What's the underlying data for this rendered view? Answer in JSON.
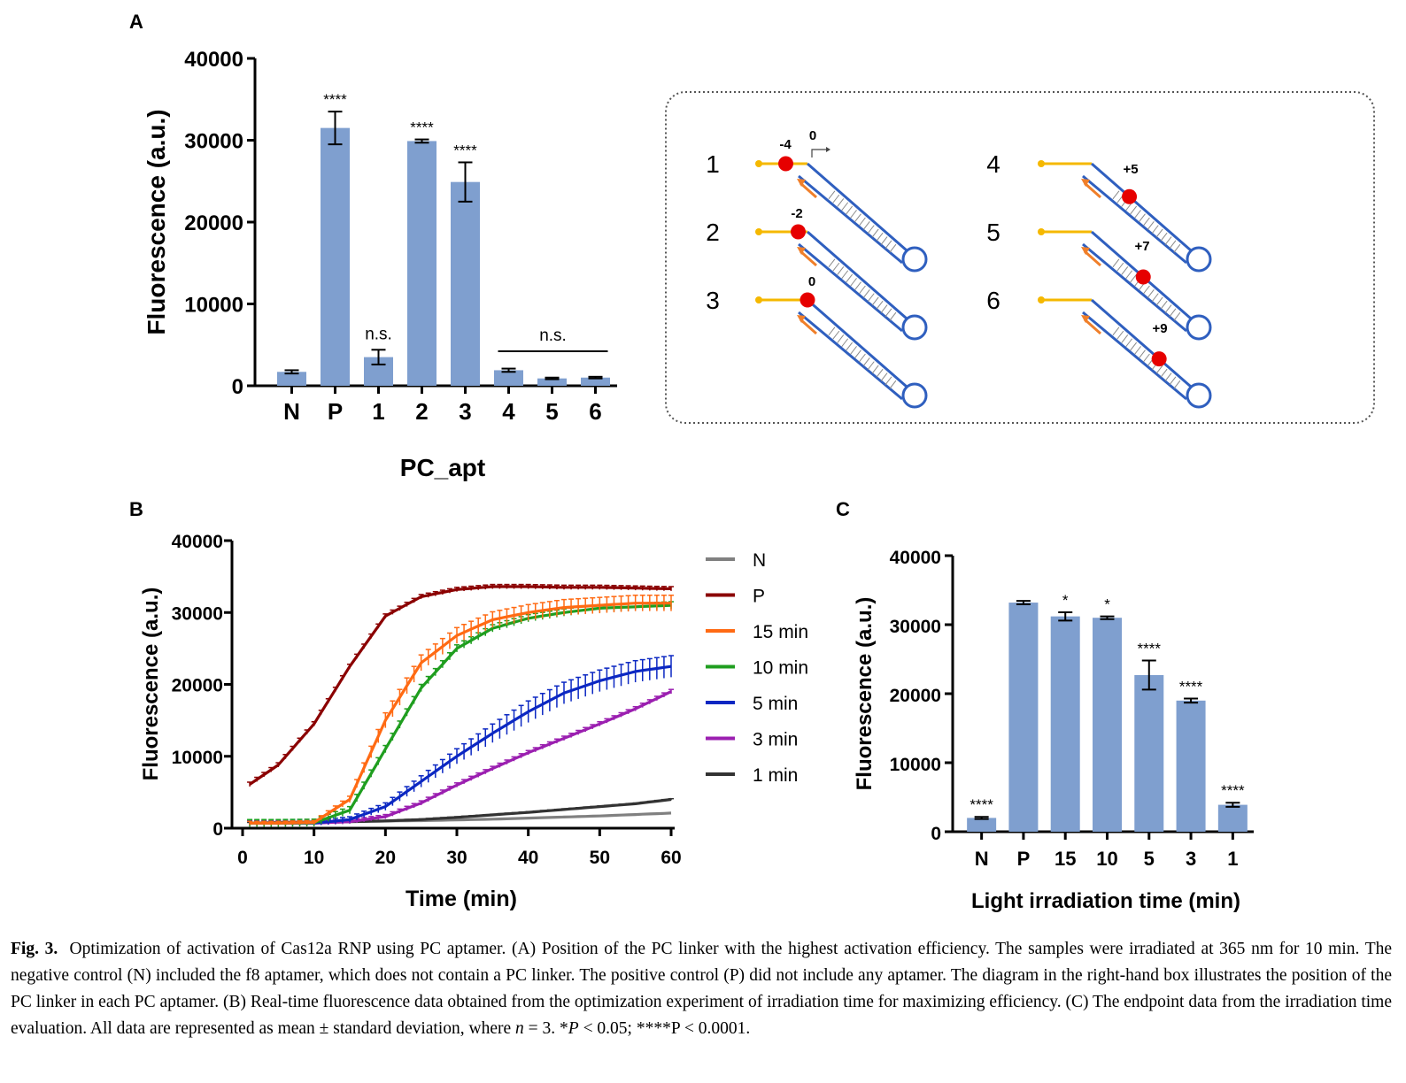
{
  "panels": {
    "a_letter": "A",
    "b_letter": "B",
    "c_letter": "C"
  },
  "chart_data": [
    {
      "id": "A",
      "type": "bar",
      "xlabel": "PC_apt",
      "ylabel": "Fluorescence (a.u.)",
      "ylim": [
        0,
        40000
      ],
      "yticks": [
        "0",
        "10000",
        "20000",
        "30000",
        "40000"
      ],
      "categories": [
        "N",
        "P",
        "1",
        "2",
        "3",
        "4",
        "5",
        "6"
      ],
      "values": [
        1700,
        31500,
        3500,
        29900,
        24900,
        1900,
        900,
        1000
      ],
      "errors": [
        200,
        2000,
        900,
        200,
        2400,
        200,
        100,
        100
      ],
      "annotations": [
        "",
        "****",
        "n.s.",
        "****",
        "****",
        "",
        "",
        ""
      ],
      "group_annotation": {
        "label": "n.s.",
        "from_category": "4",
        "to_category": "6"
      },
      "color": "#7f9fcf"
    },
    {
      "id": "B",
      "type": "line",
      "xlabel": "Time (min)",
      "ylabel": "Fluorescence (a.u.)",
      "xlim": [
        0,
        60
      ],
      "ylim": [
        0,
        40000
      ],
      "xticks": [
        "0",
        "10",
        "20",
        "30",
        "40",
        "50",
        "60"
      ],
      "yticks": [
        "0",
        "10000",
        "20000",
        "30000",
        "40000"
      ],
      "legend_position": "right",
      "x": [
        1,
        5,
        10,
        15,
        20,
        25,
        30,
        35,
        40,
        45,
        50,
        55,
        60
      ],
      "series": [
        {
          "name": "N",
          "color": "#808080",
          "values": [
            700,
            800,
            900,
            950,
            1000,
            1050,
            1150,
            1250,
            1400,
            1550,
            1700,
            1900,
            2100
          ],
          "error": 0
        },
        {
          "name": "P",
          "color": "#8b0000",
          "values": [
            6100,
            8800,
            14500,
            22500,
            29500,
            32200,
            33200,
            33600,
            33600,
            33500,
            33500,
            33400,
            33300
          ],
          "error": 300
        },
        {
          "name": "15 min",
          "color": "#ff6a13",
          "values": [
            700,
            700,
            800,
            4000,
            15000,
            23000,
            26800,
            29000,
            30000,
            30700,
            31000,
            31300,
            31300
          ],
          "error": 1100
        },
        {
          "name": "10 min",
          "color": "#1f9e1f",
          "values": [
            700,
            700,
            750,
            2500,
            11000,
            19500,
            25000,
            27800,
            29200,
            30000,
            30600,
            30800,
            31000
          ],
          "error": 500
        },
        {
          "name": "5 min",
          "color": "#0b27c2",
          "values": [
            700,
            700,
            700,
            1200,
            3000,
            6500,
            10000,
            13200,
            16200,
            18800,
            20500,
            21800,
            22500
          ],
          "error": 1500
        },
        {
          "name": "3 min",
          "color": "#9b1fb0",
          "values": [
            700,
            700,
            700,
            900,
            1600,
            3500,
            6000,
            8300,
            10500,
            12500,
            14500,
            16600,
            19000
          ],
          "error": 300
        },
        {
          "name": "1 min",
          "color": "#333333",
          "values": [
            700,
            750,
            800,
            900,
            1000,
            1200,
            1500,
            1850,
            2200,
            2600,
            3000,
            3400,
            4000
          ],
          "error": 100
        }
      ]
    },
    {
      "id": "C",
      "type": "bar",
      "xlabel": "Light irradiation time (min)",
      "ylabel": "Fluorescence (a.u.)",
      "ylim": [
        0,
        40000
      ],
      "yticks": [
        "0",
        "10000",
        "20000",
        "30000",
        "40000"
      ],
      "categories": [
        "N",
        "P",
        "15",
        "10",
        "5",
        "3",
        "1"
      ],
      "values": [
        2000,
        33200,
        31200,
        31000,
        22700,
        19000,
        3900
      ],
      "errors": [
        150,
        250,
        600,
        200,
        2100,
        300,
        300
      ],
      "annotations": [
        "****",
        "",
        "*",
        "*",
        "****",
        "****",
        "****"
      ],
      "color": "#7f9fcf"
    }
  ],
  "diagram": {
    "items": [
      {
        "number": "1",
        "position_label": "-4",
        "extra_label": "0"
      },
      {
        "number": "2",
        "position_label": "-2"
      },
      {
        "number": "3",
        "position_label": "0"
      },
      {
        "number": "4",
        "position_label": "+5"
      },
      {
        "number": "5",
        "position_label": "+7"
      },
      {
        "number": "6",
        "position_label": "+9"
      }
    ]
  },
  "caption": {
    "label": "Fig. 3.",
    "title": "Optimization of activation of Cas12a RNP using PC aptamer.",
    "body": "(A) Position of the PC linker with the highest activation efficiency. The samples were irradiated at 365 nm for 10 min. The negative control (N) included the f8 aptamer, which does not contain a PC linker. The positive control (P) did not include any aptamer. The diagram in the right-hand box illustrates the position of the PC linker in each PC aptamer. (B) Real-time fluorescence data obtained from the optimization experiment of irradiation time for maximizing efficiency. (C) The endpoint data from the irradiation time evaluation. All data are represented as mean ± standard deviation, where",
    "n_label": "n",
    "n_value": " = 3. *",
    "p_label": "P",
    "p1": " < 0.05; ****P < 0.0001."
  }
}
